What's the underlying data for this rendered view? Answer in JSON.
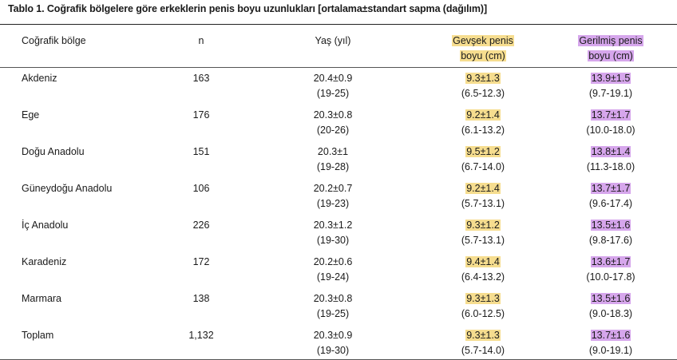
{
  "title": "Tablo 1. Coğrafik bölgelere göre erkeklerin penis boyu uzunlukları [ortalama±standart sapma (dağılım)]",
  "headers": {
    "region": "Coğrafik bölge",
    "n": "n",
    "age": "Yaş (yıl)",
    "flaccid_1": "Gevşek penis",
    "flaccid_2": "boyu (cm)",
    "stretched_1": "Gerilmiş penis",
    "stretched_2": "boyu (cm)"
  },
  "rows": [
    {
      "region": "Akdeniz",
      "n": "163",
      "age_mean": "20.4±0.9",
      "age_range": "(19-25)",
      "flaccid_mean": "9.3±1.3",
      "flaccid_range": "(6.5-12.3)",
      "stretched_mean": "13.9±1.5",
      "stretched_range": "(9.7-19.1)"
    },
    {
      "region": "Ege",
      "n": "176",
      "age_mean": "20.3±0.8",
      "age_range": "(20-26)",
      "flaccid_mean": "9.2±1.4",
      "flaccid_range": "(6.1-13.2)",
      "stretched_mean": "13.7±1.7",
      "stretched_range": "(10.0-18.0)"
    },
    {
      "region": "Doğu Anadolu",
      "n": "151",
      "age_mean": "20.3±1",
      "age_range": "(19-28)",
      "flaccid_mean": "9.5±1.2",
      "flaccid_range": "(6.7-14.0)",
      "stretched_mean": "13.8±1.4",
      "stretched_range": "(11.3-18.0)"
    },
    {
      "region": "Güneydoğu Anadolu",
      "n": "106",
      "age_mean": "20.2±0.7",
      "age_range": "(19-23)",
      "flaccid_mean": "9.2±1.4",
      "flaccid_range": "(5.7-13.1)",
      "stretched_mean": "13.7±1.7",
      "stretched_range": "(9.6-17.4)"
    },
    {
      "region": "İç Anadolu",
      "n": "226",
      "age_mean": "20.3±1.2",
      "age_range": "(19-30)",
      "flaccid_mean": "9.3±1.2",
      "flaccid_range": "(5.7-13.1)",
      "stretched_mean": "13.5±1.6",
      "stretched_range": "(9.8-17.6)"
    },
    {
      "region": "Karadeniz",
      "n": "172",
      "age_mean": "20.2±0.6",
      "age_range": "(19-24)",
      "flaccid_mean": "9.4±1.4",
      "flaccid_range": "(6.4-13.2)",
      "stretched_mean": "13.6±1.7",
      "stretched_range": "(10.0-17.8)"
    },
    {
      "region": "Marmara",
      "n": "138",
      "age_mean": "20.3±0.8",
      "age_range": "(19-25)",
      "flaccid_mean": "9.3±1.3",
      "flaccid_range": "(6.0-12.5)",
      "stretched_mean": "13.5±1.6",
      "stretched_range": "(9.0-18.3)"
    },
    {
      "region": "Toplam",
      "n": "1,132",
      "age_mean": "20.3±0.9",
      "age_range": "(19-30)",
      "flaccid_mean": "9.3±1.3",
      "flaccid_range": "(5.7-14.0)",
      "stretched_mean": "13.7±1.6",
      "stretched_range": "(9.0-19.1)"
    }
  ],
  "colors": {
    "flaccid_highlight": "#f6dd8f",
    "stretched_highlight": "#d6a6ec"
  }
}
